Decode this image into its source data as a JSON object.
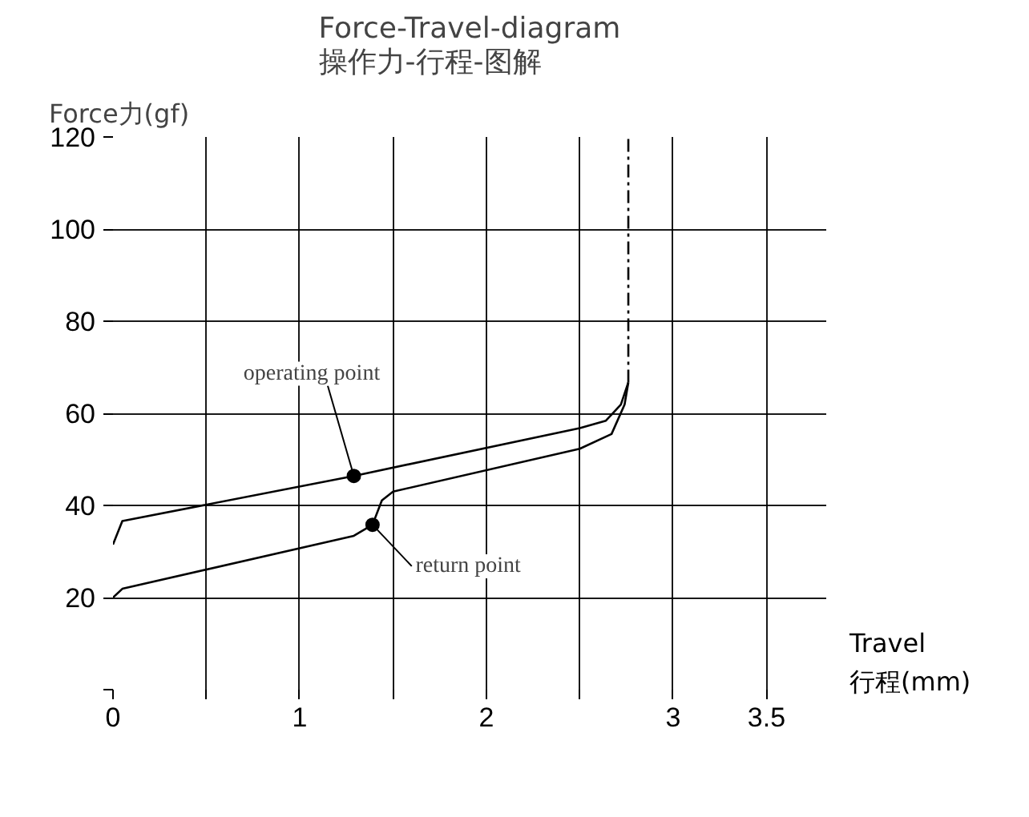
{
  "chart_data": {
    "type": "line",
    "title": "Force-Travel-diagram\n操作力-行程-图解",
    "ylabel": "Force力(gf)",
    "xlabel": "Travel\n行程(mm)",
    "series": [
      {
        "x": [
          0,
          0.05,
          1.29,
          2.5,
          2.64,
          2.72,
          2.76
        ],
        "values": [
          31.5,
          36.6,
          46.4,
          56.8,
          58.4,
          61.9,
          66.7
        ],
        "color": "#000000"
      },
      {
        "x": [
          0,
          0.05,
          1.29,
          1.39,
          1.44,
          1.5,
          2.5,
          2.67,
          2.74,
          2.76
        ],
        "values": [
          20,
          21.9,
          33.4,
          35.8,
          41.1,
          43,
          52.3,
          55.5,
          61.9,
          66.7
        ],
        "color": "#000000"
      },
      {
        "x": [
          2.76,
          2.76
        ],
        "values": [
          66.7,
          120
        ],
        "color": "#000000",
        "line_style": "dashed"
      },
      {
        "type": "scatter",
        "x": [
          1.29,
          1.39
        ],
        "values": [
          46.4,
          35.8
        ],
        "color": "#000000",
        "marker": "circle"
      }
    ],
    "annotations": [
      {
        "text": "operating point",
        "x": 1.29,
        "y": 46.4
      },
      {
        "text": "return point",
        "x": 1.39,
        "y": 35.8
      }
    ],
    "xlim": [
      0,
      3.82
    ],
    "ylim": [
      0,
      120
    ],
    "xticks": [
      0,
      {
        "value": 0.5,
        "label": null
      },
      1,
      {
        "value": 1.5,
        "label": null
      },
      2,
      {
        "value": 2.5,
        "label": null
      },
      3,
      3.5
    ],
    "yticks": [
      {
        "value": 0,
        "label": null
      },
      20,
      40,
      60,
      80,
      100,
      120
    ],
    "grid": true,
    "marker": "none",
    "line_style": "solid"
  }
}
